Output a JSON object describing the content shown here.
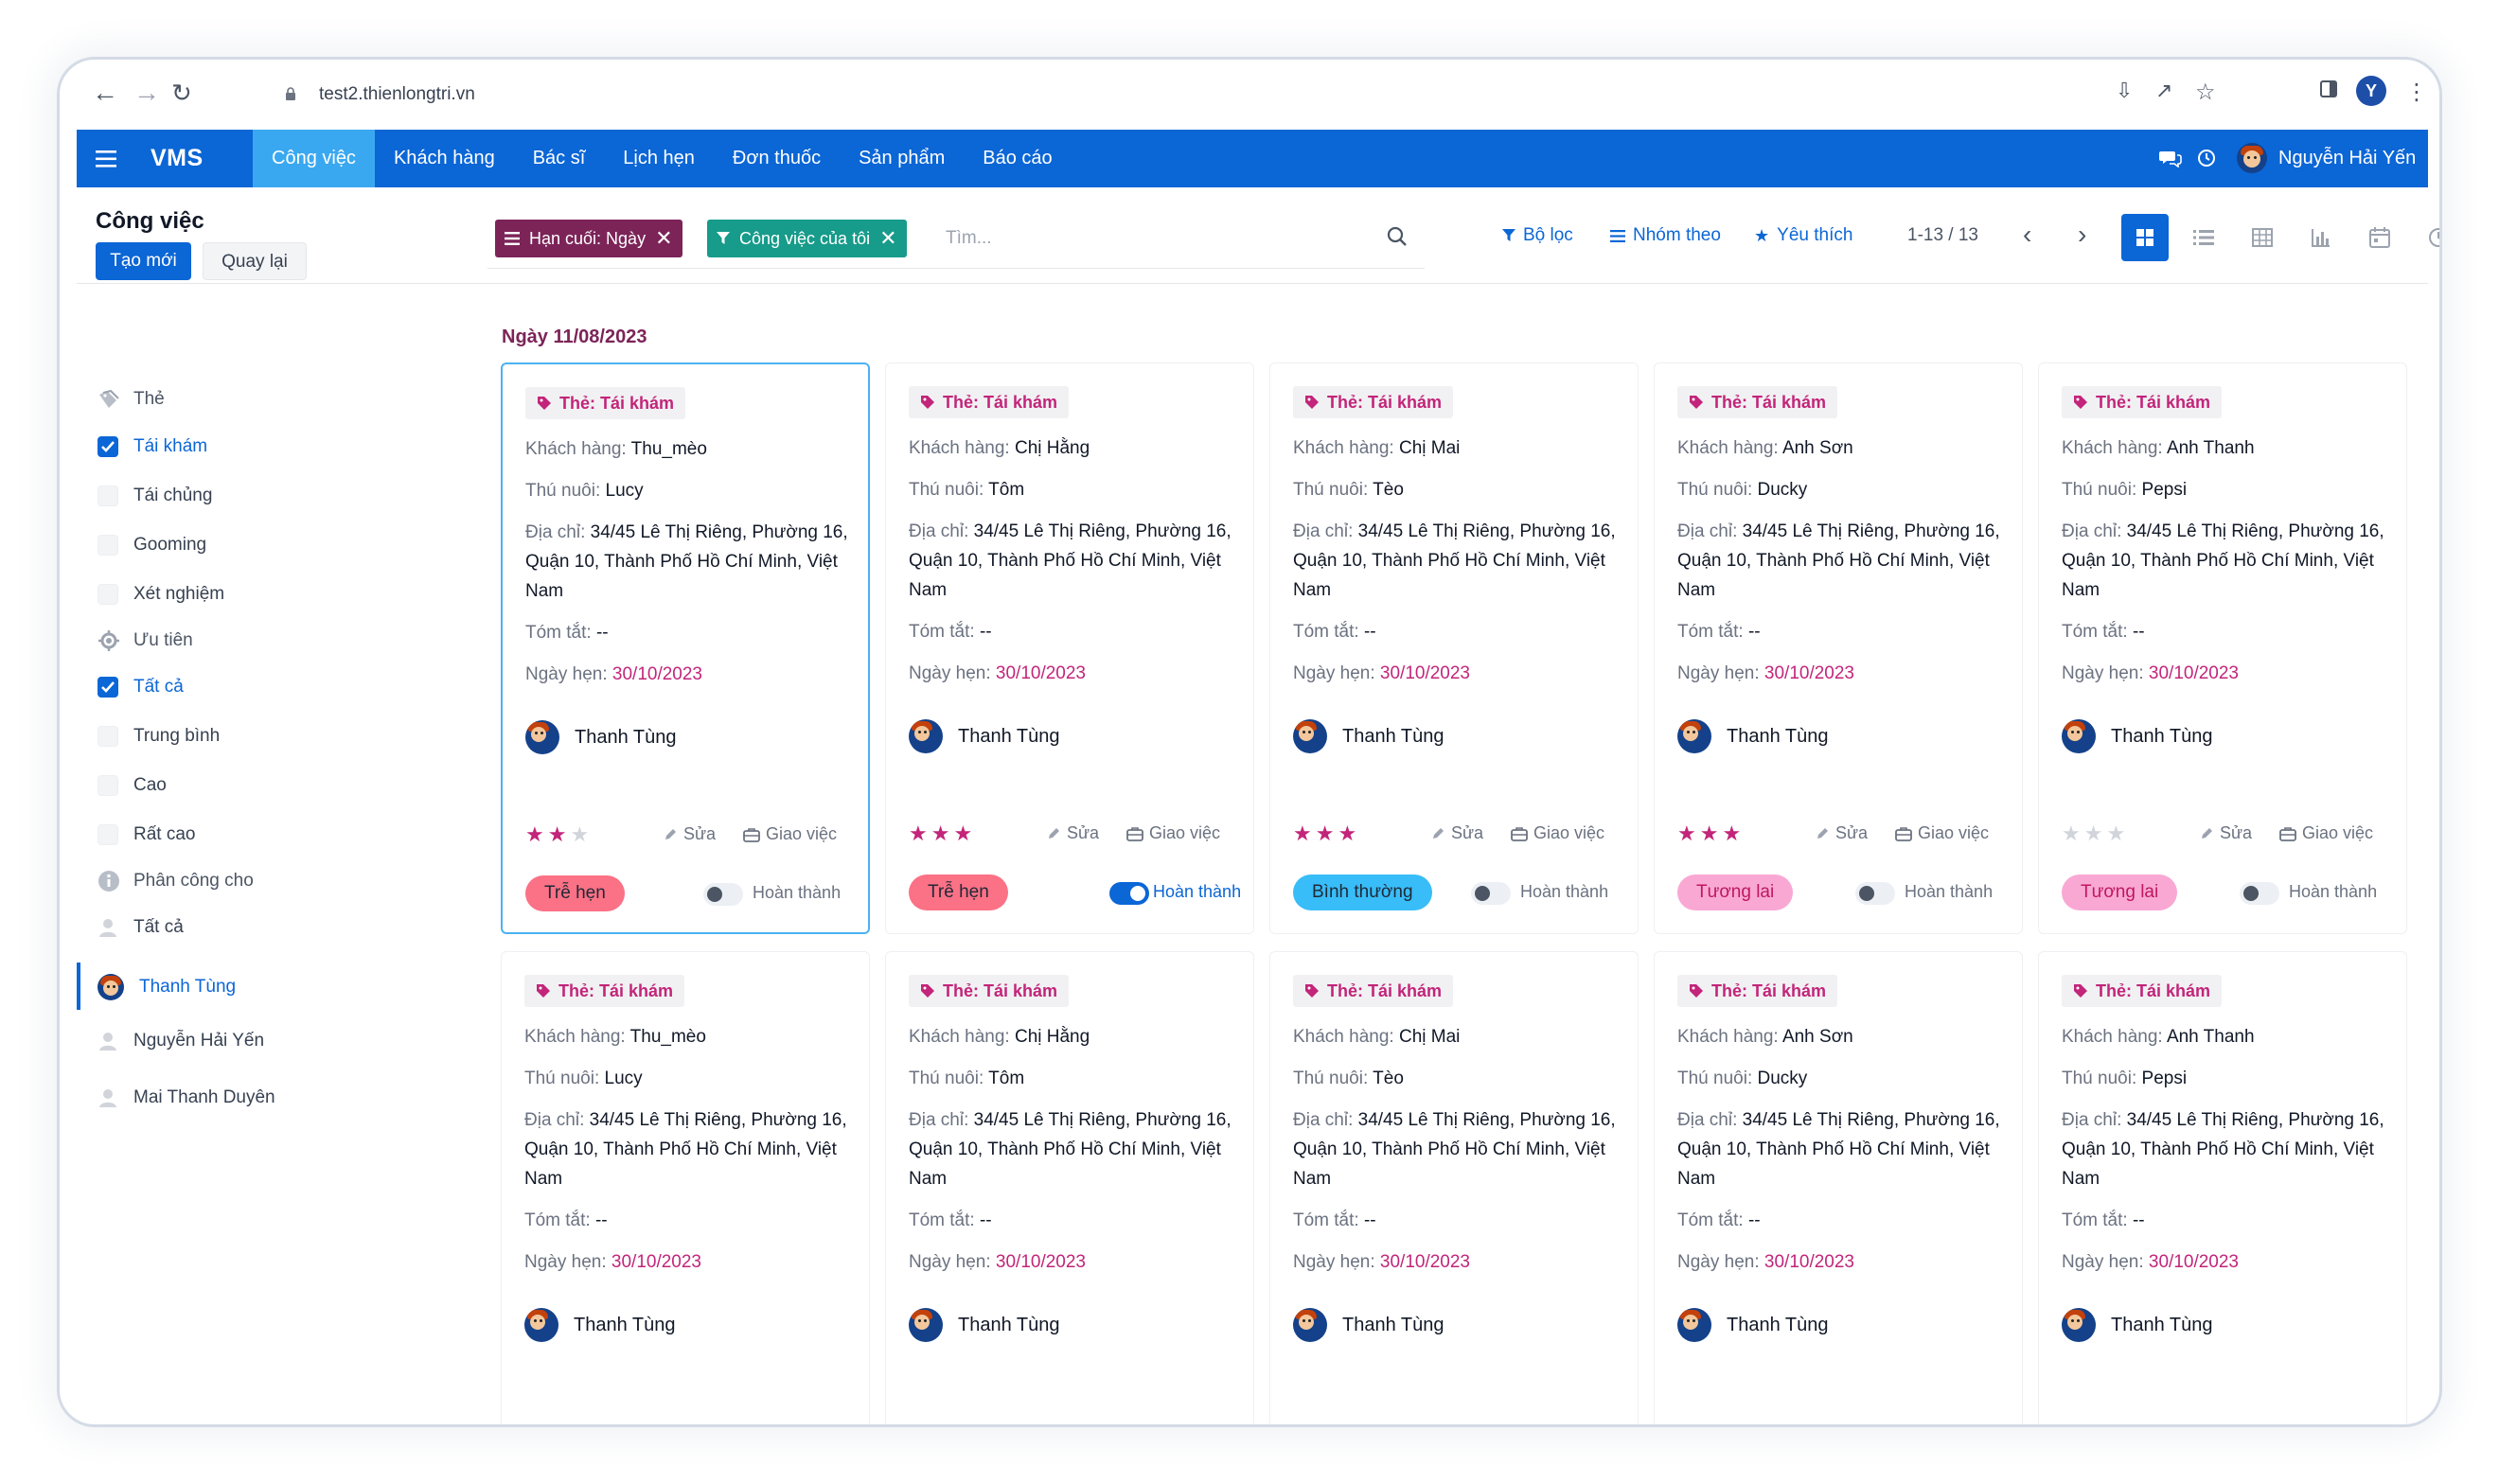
{
  "browser": {
    "url": "test2.thienlongtri.vn",
    "profile_initial": "Y"
  },
  "topnav": {
    "brand": "VMS",
    "menu": [
      "Công việc",
      "Khách hàng",
      "Bác sĩ",
      "Lịch hẹn",
      "Đơn thuốc",
      "Sản phẩm",
      "Báo cáo"
    ],
    "active_menu": "Công việc",
    "user_name": "Nguyễn Hải Yến"
  },
  "control": {
    "title": "Công việc",
    "new_label": "Tạo mới",
    "back_label": "Quay lại",
    "facets": [
      "Hạn cuối: Ngày",
      "Công việc của tôi"
    ],
    "search_placeholder": "Tìm...",
    "filter_label": "Bộ lọc",
    "group_label": "Nhóm theo",
    "favorite_label": "Yêu thích",
    "pager": "1-13 / 13"
  },
  "sidebar": {
    "tag_group": {
      "title": "Thẻ",
      "items": [
        {
          "label": "Tái khám",
          "checked": true
        },
        {
          "label": "Tái chủng",
          "checked": false
        },
        {
          "label": "Gooming",
          "checked": false
        },
        {
          "label": "Xét nghiệm",
          "checked": false
        }
      ]
    },
    "priority_group": {
      "title": "Ưu tiên",
      "items": [
        {
          "label": "Tất cả",
          "checked": true
        },
        {
          "label": "Trung bình",
          "checked": false
        },
        {
          "label": "Cao",
          "checked": false
        },
        {
          "label": "Rất cao",
          "checked": false
        }
      ]
    },
    "assign_group": {
      "title": "Phân công cho",
      "items": [
        {
          "label": "Tất cả",
          "selected": false
        },
        {
          "label": "Thanh Tùng",
          "selected": true
        },
        {
          "label": "Nguyễn Hải Yến",
          "selected": false
        },
        {
          "label": "Mai Thanh Duyên",
          "selected": false
        }
      ]
    }
  },
  "board": {
    "date_header": "Ngày 11/08/2023",
    "labels": {
      "customer": "Khách hàng:",
      "pet": "Thú nuôi:",
      "address": "Địa chỉ:",
      "summary": "Tóm tắt:",
      "appointment": "Ngày hẹn:",
      "edit": "Sửa",
      "assign": "Giao việc",
      "done": "Hoàn thành"
    },
    "cards": [
      {
        "tag": "Thẻ: Tái khám",
        "customer": "Thu_mèo",
        "pet": "Lucy",
        "address": "34/45 Lê Thị Riêng, Phường 16, Quận 10, Thành Phố Hồ Chí Minh, Việt Nam",
        "summary": "--",
        "date": "30/10/2023",
        "assignee": "Thanh Tùng",
        "stars": 2,
        "status": "Trễ hẹn",
        "status_color": "#fb7185",
        "status_text_color": "#1f2937",
        "done": false,
        "focused": true
      },
      {
        "tag": "Thẻ: Tái khám",
        "customer": "Chị Hằng",
        "pet": "Tôm",
        "address": "34/45 Lê Thị Riêng, Phường 16, Quận 10, Thành Phố Hồ Chí Minh, Việt Nam",
        "summary": "--",
        "date": "30/10/2023",
        "assignee": "Thanh Tùng",
        "stars": 3,
        "status": "Trễ hẹn",
        "status_color": "#fb7185",
        "status_text_color": "#1f2937",
        "done": true,
        "focused": false
      },
      {
        "tag": "Thẻ: Tái khám",
        "customer": "Chị Mai",
        "pet": "Tèo",
        "address": "34/45 Lê Thị Riêng, Phường 16, Quận 10, Thành Phố Hồ Chí Minh, Việt Nam",
        "summary": "--",
        "date": "30/10/2023",
        "assignee": "Thanh Tùng",
        "stars": 3,
        "status": "Bình thường",
        "status_color": "#38bdf8",
        "status_text_color": "#1f2937",
        "done": false,
        "focused": false
      },
      {
        "tag": "Thẻ: Tái khám",
        "customer": "Anh Sơn",
        "pet": "Ducky",
        "address": "34/45 Lê Thị Riêng, Phường 16, Quận 10, Thành Phố Hồ Chí Minh, Việt Nam",
        "summary": "--",
        "date": "30/10/2023",
        "assignee": "Thanh Tùng",
        "stars": 3,
        "status": "Tương lai",
        "status_color": "#f9a8d4",
        "status_text_color": "#be185d",
        "done": false,
        "focused": false
      },
      {
        "tag": "Thẻ: Tái khám",
        "customer": "Anh Thanh",
        "pet": "Pepsi",
        "address": "34/45 Lê Thị Riêng, Phường 16, Quận 10, Thành Phố Hồ Chí Minh, Việt Nam",
        "summary": "--",
        "date": "30/10/2023",
        "assignee": "Thanh Tùng",
        "stars": 0,
        "status": "Tương lai",
        "status_color": "#f9a8d4",
        "status_text_color": "#be185d",
        "done": false,
        "focused": false
      },
      {
        "tag": "Thẻ: Tái khám",
        "customer": "Thu_mèo",
        "pet": "Lucy",
        "address": "34/45 Lê Thị Riêng, Phường 16, Quận 10, Thành Phố Hồ Chí Minh, Việt Nam",
        "summary": "--",
        "date": "30/10/2023",
        "assignee": "Thanh Tùng"
      },
      {
        "tag": "Thẻ: Tái khám",
        "customer": "Chị Hằng",
        "pet": "Tôm",
        "address": "34/45 Lê Thị Riêng, Phường 16, Quận 10, Thành Phố Hồ Chí Minh, Việt Nam",
        "summary": "--",
        "date": "30/10/2023",
        "assignee": "Thanh Tùng"
      },
      {
        "tag": "Thẻ: Tái khám",
        "customer": "Chị Mai",
        "pet": "Tèo",
        "address": "34/45 Lê Thị Riêng, Phường 16, Quận 10, Thành Phố Hồ Chí Minh, Việt Nam",
        "summary": "--",
        "date": "30/10/2023",
        "assignee": "Thanh Tùng"
      },
      {
        "tag": "Thẻ: Tái khám",
        "customer": "Anh Sơn",
        "pet": "Ducky",
        "address": "34/45 Lê Thị Riêng, Phường 16, Quận 10, Thành Phố Hồ Chí Minh, Việt Nam",
        "summary": "--",
        "date": "30/10/2023",
        "assignee": "Thanh Tùng"
      },
      {
        "tag": "Thẻ: Tái khám",
        "customer": "Anh Thanh",
        "pet": "Pepsi",
        "address": "34/45 Lê Thị Riêng, Phường 16, Quận 10, Thành Phố Hồ Chí Minh, Việt Nam",
        "summary": "--",
        "date": "30/10/2023",
        "assignee": "Thanh Tùng"
      }
    ]
  },
  "colors": {
    "primary": "#0b66d6",
    "accent": "#c2257a",
    "facet_deadline": "#7c2458",
    "facet_mine": "#179b8a",
    "menu_active": "#3aa8f0"
  }
}
